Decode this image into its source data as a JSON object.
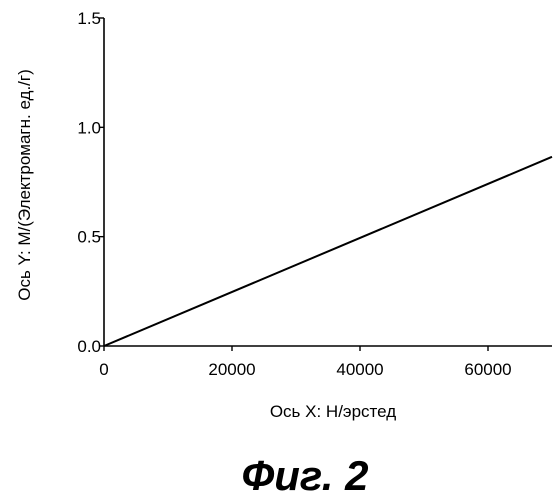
{
  "chart_data": {
    "type": "line",
    "xlabel": "Ось X: H/эрстед",
    "ylabel": "Ось Y: M/(Электромагн. ед./г)",
    "xlim": [
      0,
      70000
    ],
    "ylim": [
      0,
      1.5
    ],
    "x_ticks": [
      0,
      20000,
      40000,
      60000
    ],
    "x_tick_labels": [
      "0",
      "20000",
      "40000",
      "60000"
    ],
    "y_ticks": [
      0.0,
      0.5,
      1.0,
      1.5
    ],
    "y_tick_labels": [
      "0.0",
      "0.5",
      "1.0",
      "1.5"
    ],
    "grid": false,
    "series": [
      {
        "x": [
          0,
          70000
        ],
        "y": [
          0.0,
          0.865
        ]
      }
    ]
  },
  "caption": "Фиг. 2"
}
